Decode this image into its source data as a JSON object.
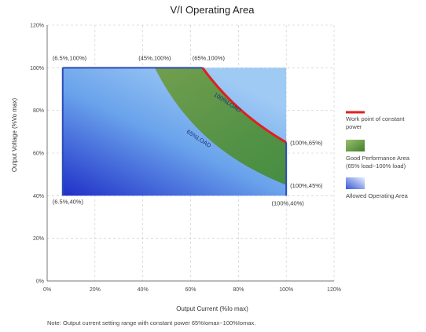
{
  "chart_data": {
    "type": "area",
    "title": "V/I Operating Area",
    "xlabel": "Output Current (%Io max)",
    "ylabel": "Output Voltage (%Vo max)",
    "xlim": [
      0,
      120
    ],
    "ylim": [
      0,
      120
    ],
    "x_ticks": [
      {
        "v": 0,
        "label": "0%"
      },
      {
        "v": 20,
        "label": "20%"
      },
      {
        "v": 40,
        "label": "40%"
      },
      {
        "v": 60,
        "label": "60%"
      },
      {
        "v": 80,
        "label": "80%"
      },
      {
        "v": 100,
        "label": "100%"
      },
      {
        "v": 120,
        "label": "120%"
      }
    ],
    "y_ticks": [
      {
        "v": 0,
        "label": "0%"
      },
      {
        "v": 20,
        "label": "20%"
      },
      {
        "v": 40,
        "label": "40%"
      },
      {
        "v": 60,
        "label": "60%"
      },
      {
        "v": 80,
        "label": "80%"
      },
      {
        "v": 100,
        "label": "100%"
      },
      {
        "v": 120,
        "label": "120%"
      }
    ],
    "grid": true,
    "series": [
      {
        "name": "Allowed Operating Area",
        "color": "#3050d0",
        "points": [
          [
            6.5,
            40
          ],
          [
            6.5,
            100
          ],
          [
            100,
            100
          ],
          [
            100,
            40
          ]
        ]
      },
      {
        "name": "Good Performance Area (65% load~100% load)",
        "color": "#5a9a3a",
        "upper_boundary_load_pct": 100,
        "lower_boundary_load_pct": 65
      },
      {
        "name": "Work point of constant power",
        "color": "#e02020",
        "load_pct": 100,
        "x_range": [
          65,
          100
        ]
      }
    ],
    "load_curve_labels": [
      {
        "text": "100%LOAD",
        "x": 75,
        "y": 83,
        "angle": 33
      },
      {
        "text": "65%LOAD",
        "x": 63,
        "y": 66,
        "angle": 33
      }
    ],
    "point_annotations": [
      {
        "text": "(6.5%,100%)",
        "x": 6.5,
        "y": 100,
        "pos": "above-right"
      },
      {
        "text": "(45%,100%)",
        "x": 45,
        "y": 100,
        "pos": "above"
      },
      {
        "text": "(65%,100%)",
        "x": 65,
        "y": 100,
        "pos": "above-right"
      },
      {
        "text": "(100%,65%)",
        "x": 100,
        "y": 65,
        "pos": "right"
      },
      {
        "text": "(100%,45%)",
        "x": 100,
        "y": 45,
        "pos": "right"
      },
      {
        "text": "(6.5%,40%)",
        "x": 6.5,
        "y": 40,
        "pos": "below-right"
      },
      {
        "text": "(100%,40%)",
        "x": 100,
        "y": 40,
        "pos": "below"
      }
    ],
    "legend": {
      "placement": "right",
      "items": [
        {
          "label_lines": [
            "Work point of constant",
            "power"
          ],
          "swatch": "line",
          "color": "#e02020"
        },
        {
          "label_lines": [
            "Good Performance Area",
            "(65% load~100%  load)"
          ],
          "swatch": "green-gradient",
          "color": "#5a9a3a"
        },
        {
          "label_lines": [
            "Allowed  Operating  Area"
          ],
          "swatch": "blue-gradient",
          "color": "#3050d0"
        }
      ]
    },
    "note": "Note:   Output  current  setting range  with constant power  65%Iomax~100%Iomax."
  }
}
